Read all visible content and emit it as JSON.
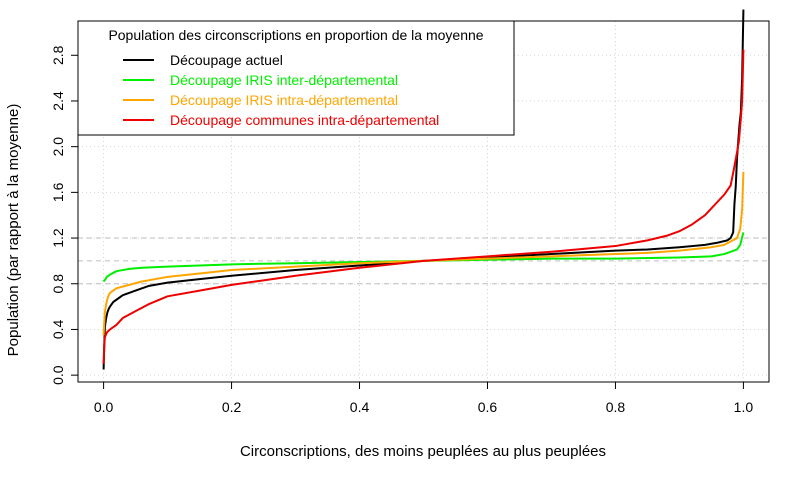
{
  "chart_data": {
    "type": "line",
    "title": "",
    "xlabel": "Circonscriptions, des moins peuplées au plus peuplées",
    "ylabel": "Population (par rapport à la moyenne)",
    "xlim": [
      -0.04,
      1.04
    ],
    "ylim": [
      -0.06,
      3.1
    ],
    "x_ticks": [
      0.0,
      0.2,
      0.4,
      0.6,
      0.8,
      1.0
    ],
    "x_tick_labels": [
      "0.0",
      "0.2",
      "0.4",
      "0.6",
      "0.8",
      "1.0"
    ],
    "y_ticks": [
      0.0,
      0.4,
      0.8,
      1.2,
      1.6,
      2.0,
      2.4,
      2.8
    ],
    "y_tick_labels": [
      "0.0",
      "0.4",
      "0.8",
      "1.2",
      "1.6",
      "2.0",
      "2.4",
      "2.8"
    ],
    "grid": true,
    "reference_lines": [
      0.8,
      1.0,
      1.2
    ],
    "legend": {
      "title": "Population des circonscriptions en proportion de la moyenne",
      "placement": "top-left"
    },
    "series": [
      {
        "name": "Découpage actuel",
        "color": "#000000",
        "x": [
          0.0,
          0.001,
          0.002,
          0.004,
          0.006,
          0.008,
          0.01,
          0.015,
          0.02,
          0.03,
          0.05,
          0.07,
          0.1,
          0.15,
          0.2,
          0.3,
          0.4,
          0.5,
          0.6,
          0.7,
          0.8,
          0.85,
          0.9,
          0.94,
          0.96,
          0.975,
          0.98,
          0.984,
          0.986,
          0.988,
          0.99,
          0.992,
          0.994,
          0.996,
          0.998,
          0.999,
          1.0
        ],
        "y": [
          0.05,
          0.25,
          0.42,
          0.5,
          0.55,
          0.58,
          0.6,
          0.64,
          0.66,
          0.7,
          0.74,
          0.78,
          0.81,
          0.84,
          0.87,
          0.92,
          0.96,
          1.0,
          1.03,
          1.06,
          1.09,
          1.1,
          1.12,
          1.14,
          1.16,
          1.18,
          1.2,
          1.25,
          1.5,
          1.65,
          1.9,
          2.05,
          2.2,
          2.3,
          2.6,
          2.9,
          3.2
        ]
      },
      {
        "name": "Découpage IRIS inter-départemental",
        "color": "#00ee00",
        "x": [
          0.0,
          0.003,
          0.005,
          0.01,
          0.02,
          0.04,
          0.06,
          0.1,
          0.2,
          0.3,
          0.4,
          0.5,
          0.6,
          0.7,
          0.8,
          0.9,
          0.95,
          0.97,
          0.98,
          0.99,
          0.995,
          1.0
        ],
        "y": [
          0.82,
          0.84,
          0.86,
          0.88,
          0.91,
          0.93,
          0.94,
          0.95,
          0.97,
          0.98,
          0.99,
          1.0,
          1.01,
          1.02,
          1.02,
          1.03,
          1.04,
          1.06,
          1.08,
          1.1,
          1.14,
          1.25
        ]
      },
      {
        "name": "Découpage IRIS intra-départemental",
        "color": "#ffa500",
        "x": [
          0.0,
          0.001,
          0.002,
          0.004,
          0.006,
          0.008,
          0.01,
          0.015,
          0.02,
          0.04,
          0.06,
          0.08,
          0.1,
          0.15,
          0.2,
          0.3,
          0.4,
          0.5,
          0.6,
          0.7,
          0.8,
          0.85,
          0.9,
          0.95,
          0.97,
          0.98,
          0.99,
          0.995,
          0.998,
          1.0
        ],
        "y": [
          0.35,
          0.45,
          0.55,
          0.62,
          0.67,
          0.7,
          0.72,
          0.74,
          0.76,
          0.79,
          0.82,
          0.84,
          0.86,
          0.89,
          0.92,
          0.95,
          0.98,
          1.0,
          1.02,
          1.04,
          1.06,
          1.07,
          1.09,
          1.12,
          1.14,
          1.17,
          1.2,
          1.28,
          1.45,
          1.78
        ]
      },
      {
        "name": "Découpage communes intra-départemental",
        "color": "#ee0000",
        "x": [
          0.0,
          0.001,
          0.002,
          0.004,
          0.006,
          0.01,
          0.02,
          0.03,
          0.05,
          0.07,
          0.1,
          0.15,
          0.2,
          0.25,
          0.3,
          0.4,
          0.5,
          0.6,
          0.7,
          0.8,
          0.85,
          0.88,
          0.9,
          0.92,
          0.94,
          0.95,
          0.96,
          0.97,
          0.98,
          0.985,
          0.99,
          0.993,
          0.996,
          0.998,
          1.0
        ],
        "y": [
          0.1,
          0.25,
          0.33,
          0.36,
          0.38,
          0.4,
          0.44,
          0.5,
          0.56,
          0.62,
          0.69,
          0.74,
          0.79,
          0.83,
          0.87,
          0.94,
          1.0,
          1.04,
          1.08,
          1.13,
          1.18,
          1.22,
          1.26,
          1.32,
          1.4,
          1.46,
          1.52,
          1.58,
          1.66,
          1.8,
          1.95,
          2.05,
          2.25,
          2.4,
          2.85
        ]
      }
    ]
  }
}
